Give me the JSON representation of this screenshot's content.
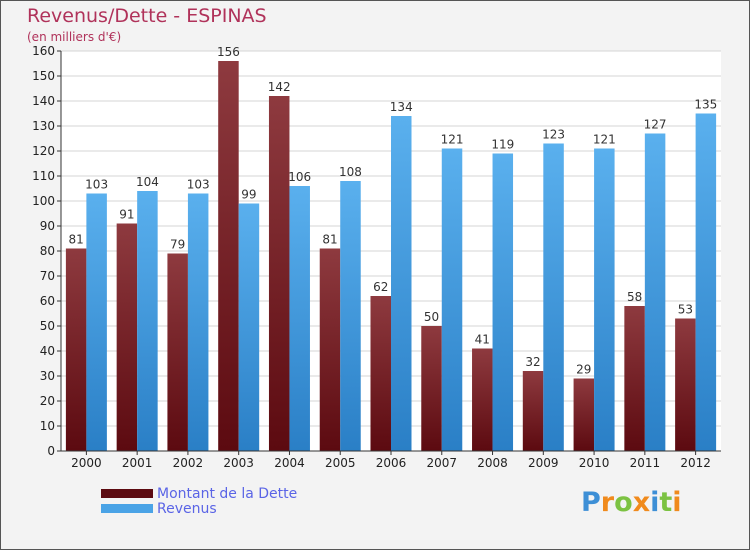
{
  "chart_data": {
    "type": "bar",
    "title": "Revenus/Dette - ESPINAS",
    "subtitle": "(en milliers d'€)",
    "categories": [
      "2000",
      "2001",
      "2002",
      "2003",
      "2004",
      "2005",
      "2006",
      "2007",
      "2008",
      "2009",
      "2010",
      "2011",
      "2012"
    ],
    "series": [
      {
        "name": "Montant de la Dette",
        "color": "#7a1f26",
        "values": [
          81,
          91,
          79,
          156,
          142,
          81,
          62,
          50,
          41,
          32,
          29,
          58,
          53
        ]
      },
      {
        "name": "Revenus",
        "color": "#4aa3e6",
        "values": [
          103,
          104,
          103,
          99,
          106,
          108,
          134,
          121,
          119,
          123,
          121,
          127,
          135
        ]
      }
    ],
    "ylim": [
      0,
      160
    ],
    "yticks": [
      0,
      10,
      20,
      30,
      40,
      50,
      60,
      70,
      80,
      90,
      100,
      110,
      120,
      130,
      140,
      150,
      160
    ],
    "grid": true,
    "xlabel": "",
    "ylabel": "",
    "legend_position": "bottom-left"
  },
  "logo": {
    "letters": [
      {
        "ch": "P",
        "color": "#3d8fd6"
      },
      {
        "ch": "r",
        "color": "#f08a1c"
      },
      {
        "ch": "o",
        "color": "#7cc242"
      },
      {
        "ch": "x",
        "color": "#f08a1c"
      },
      {
        "ch": "i",
        "color": "#3d8fd6"
      },
      {
        "ch": "t",
        "color": "#7cc242"
      },
      {
        "ch": "i",
        "color": "#f08a1c"
      }
    ]
  }
}
